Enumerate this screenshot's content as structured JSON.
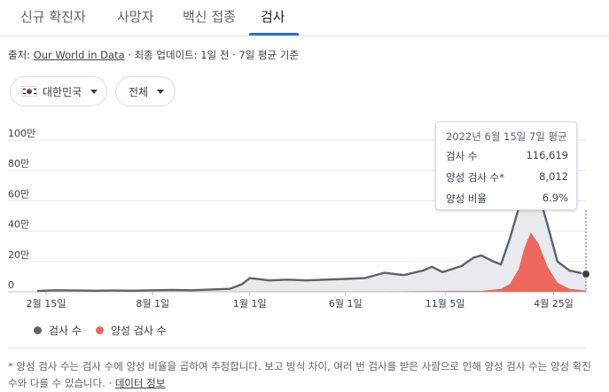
{
  "tabs": [
    {
      "label": "신규 확진자",
      "active": false
    },
    {
      "label": "사망자",
      "active": false
    },
    {
      "label": "백신 접종",
      "active": false
    },
    {
      "label": "검사",
      "active": true
    }
  ],
  "source": {
    "prefix": "출처: ",
    "link_text": "Our World in Data",
    "suffix": " · 최종 업데이트: 1일 전 · 7일 평균 기준"
  },
  "filters": {
    "country_label": "대한민국",
    "country_icon": "south-korea-flag-icon",
    "range_label": "전체"
  },
  "tooltip": {
    "title": "2022년 6월 15일 7일 평균",
    "rows": [
      {
        "label": "검사 수",
        "value": "116,619"
      },
      {
        "label": "양성 검사 수*",
        "value": "8,012"
      },
      {
        "label": "양성 비율",
        "value": "6.9%"
      }
    ]
  },
  "legend": {
    "tests_label": "검사 수",
    "positive_label": "양성 검사 수"
  },
  "footnote": {
    "text": "* 양성 검사 수는 검사 수에 양성 비율을 곱하여 추정합니다. 보고 방식 차이, 여러 번 검사를 받은 사람으로 인해 양성 검사 수는 양성 확진 수와 다를 수 있습니다.",
    "link_text": "데이터 정보"
  },
  "colors": {
    "tests_line": "#5f6368",
    "tests_fill": "#e8eaed",
    "positive_fill": "#ee675c",
    "accent": "#1a73e8"
  },
  "chart_data": {
    "type": "area",
    "y_tick_labels": [
      "0",
      "20만",
      "40만",
      "60만",
      "80만",
      "100만"
    ],
    "y_ticks": [
      0,
      200000,
      400000,
      600000,
      800000,
      1000000
    ],
    "x_tick_labels": [
      "2월 15일",
      "8월 1일",
      "1월 1일",
      "6월 1일",
      "11월 5일",
      "4월 25일"
    ],
    "x_ticks": [
      "2020-02-15",
      "2020-08-01",
      "2021-01-01",
      "2021-06-01",
      "2021-11-05",
      "2022-04-25"
    ],
    "x_range": [
      "2020-02-01",
      "2022-06-15"
    ],
    "ylim": [
      0,
      1000000
    ],
    "grid": true,
    "legend_position": "bottom-left",
    "series": [
      {
        "name": "검사 수",
        "x": [
          "2020-02-01",
          "2020-03-01",
          "2020-04-01",
          "2020-05-01",
          "2020-06-01",
          "2020-07-01",
          "2020-08-01",
          "2020-09-01",
          "2020-10-01",
          "2020-11-01",
          "2020-12-01",
          "2020-12-20",
          "2021-01-01",
          "2021-02-01",
          "2021-03-01",
          "2021-04-01",
          "2021-05-01",
          "2021-06-01",
          "2021-07-01",
          "2021-08-01",
          "2021-09-01",
          "2021-10-01",
          "2021-10-15",
          "2021-11-01",
          "2021-12-01",
          "2021-12-20",
          "2022-01-01",
          "2022-01-20",
          "2022-02-01",
          "2022-02-15",
          "2022-03-01",
          "2022-03-10",
          "2022-03-20",
          "2022-04-01",
          "2022-04-15",
          "2022-05-01",
          "2022-05-20",
          "2022-06-15"
        ],
        "values": [
          5000,
          10000,
          8000,
          7000,
          8000,
          7000,
          10000,
          12000,
          10000,
          15000,
          20000,
          50000,
          90000,
          75000,
          80000,
          75000,
          80000,
          85000,
          90000,
          125000,
          110000,
          140000,
          165000,
          130000,
          170000,
          225000,
          240000,
          200000,
          180000,
          350000,
          550000,
          750000,
          720000,
          650000,
          450000,
          200000,
          140000,
          116619
        ]
      },
      {
        "name": "양성 검사 수",
        "x": [
          "2020-02-01",
          "2020-12-01",
          "2021-03-01",
          "2021-08-01",
          "2021-12-01",
          "2022-01-01",
          "2022-02-01",
          "2022-02-15",
          "2022-03-01",
          "2022-03-10",
          "2022-03-20",
          "2022-04-01",
          "2022-04-15",
          "2022-05-01",
          "2022-05-20",
          "2022-06-15"
        ],
        "values": [
          0,
          1000,
          1000,
          2000,
          5000,
          5000,
          20000,
          50000,
          150000,
          290000,
          390000,
          320000,
          170000,
          60000,
          20000,
          8012
        ]
      }
    ]
  }
}
